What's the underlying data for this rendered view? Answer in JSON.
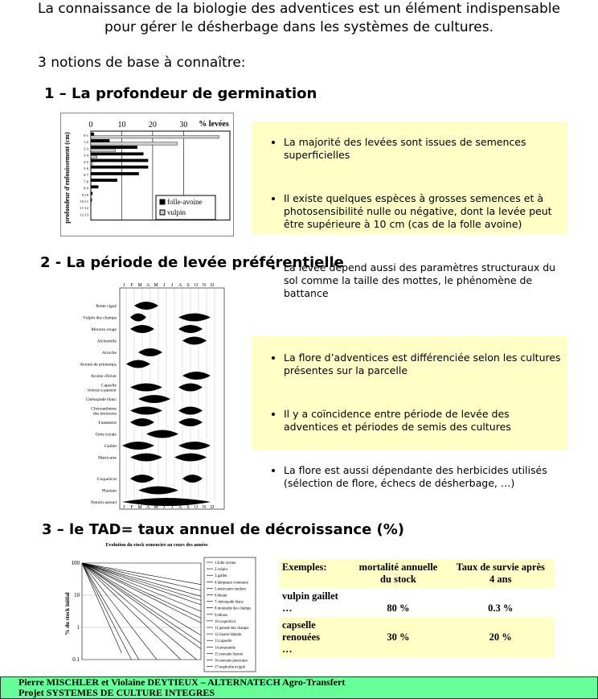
{
  "header": {
    "title": "La connaissance de la biologie des adventices est un élément indispensable\npour gérer le désherbage dans les systèmes de cultures.",
    "intro": "3 notions de base à connaître:"
  },
  "sections": [
    {
      "heading": "1 – La profondeur de germination",
      "bullets": [
        "La majorité des levées sont issues de semences superficielles",
        "Il existe quelques espèces à grosses semences et à photosensibilité nulle ou négative, dont la levée peut être supérieure à 10 cm (cas de la folle avoine)",
        "La levée dépend aussi des paramètres structuraux du sol comme la taille des mottes, le phénomène de battance"
      ],
      "figure": {
        "type": "bar",
        "x_title": "% levées",
        "y_title": "profondeur d'enfouissement (cm)",
        "categories": [
          "0-1",
          "1-2",
          "2-3",
          "3-4",
          "4-5",
          "5-6",
          "6-7",
          "7-8",
          "8-9",
          "9-10",
          "10-11",
          "11-12",
          "12-13"
        ],
        "series": [
          {
            "name": "folle-avoine",
            "color": "#000000",
            "values": [
              1,
              6,
              15,
              17,
              18.5,
              18.5,
              15.5,
              8.5,
              2.4,
              0.5,
              0.3,
              0,
              0
            ]
          },
          {
            "name": "vulpin",
            "color": "#cccccc",
            "values": [
              41.5,
              28,
              8,
              2,
              0.5,
              0,
              0,
              0,
              0,
              0,
              0,
              0,
              0
            ]
          }
        ],
        "xlim": [
          0,
          45
        ],
        "xticks": [
          0,
          10,
          20,
          30
        ]
      }
    },
    {
      "heading": "2 - La période de levée préférentielle",
      "bullets": [
        "La flore d’adventices est différenciée selon les cultures présentes sur la parcelle",
        "Il y a coïncidence entre période de levée des adventices et périodes de semis des cultures",
        "La flore est aussi dépendante des herbicides utilisés (sélection de flore, échecs de désherbage, …)"
      ],
      "figure": {
        "months": [
          "J",
          "F",
          "M",
          "A",
          "M",
          "J",
          "J",
          "A",
          "S",
          "O",
          "N",
          "D"
        ],
        "species": [
          {
            "name": "Petite ciguë",
            "periods": [
              [
                2.5,
                5.5
              ]
            ]
          },
          {
            "name": "Vulpin des champs",
            "periods": [
              [
                2,
                4
              ],
              [
                8,
                12
              ]
            ]
          },
          {
            "name": "Mouron rouge",
            "periods": [
              [
                2,
                5
              ],
              [
                8,
                11
              ]
            ]
          },
          {
            "name": "Alchemille",
            "periods": [
              [
                8.5,
                11.5
              ]
            ]
          },
          {
            "name": "Arroche",
            "periods": [
              [
                3,
                6
              ]
            ]
          },
          {
            "name": "Avoine de printemps",
            "periods": [
              [
                1.5,
                4.5
              ]
            ]
          },
          {
            "name": "Avoine d'hiver",
            "periods": [
              [
                8.5,
                12
              ]
            ]
          },
          {
            "name": "Capselle\nbourse à pasteur",
            "periods": [
              [
                2,
                6
              ],
              [
                8,
                11
              ]
            ]
          },
          {
            "name": "Chénopode blanc",
            "periods": [
              [
                3,
                7
              ]
            ]
          },
          {
            "name": "Chrysanthème\ndes moissons",
            "periods": [
              [
                2,
                6
              ],
              [
                8,
                11
              ]
            ]
          },
          {
            "name": "Fumeterre",
            "periods": [
              [
                2,
                5
              ],
              [
                8,
                11
              ]
            ]
          },
          {
            "name": "Ortie royale",
            "periods": [
              [
                4,
                8
              ]
            ]
          },
          {
            "name": "Gaillet",
            "periods": [
              [
                1,
                5
              ],
              [
                8,
                12
              ]
            ]
          },
          {
            "name": "Matricaire",
            "periods": [
              [
                2,
                6
              ],
              [
                7.5,
                11.5
              ]
            ]
          },
          {
            "name": "Coquelicot",
            "periods": [
              [
                2,
                5
              ],
              [
                8.5,
                11
              ]
            ]
          },
          {
            "name": "Plantain",
            "periods": [
              [
                3,
                8
              ]
            ]
          },
          {
            "name": "Paturin annuel",
            "periods": [
              [
                1,
                12
              ]
            ]
          }
        ]
      }
    },
    {
      "heading": "3 – le TAD= taux annuel de décroissance (%)",
      "figure": {
        "type": "line",
        "title": "Evolution du stock semencier au cours des années",
        "y_title": "% du stock initial",
        "log_y": true,
        "ylim": [
          0.1,
          100
        ],
        "yticks": [
          100,
          10,
          1,
          0.1
        ],
        "xlim": [
          0,
          12
        ],
        "series": [
          {
            "name": "1.folle avoine",
            "annual_survival": 0.2
          },
          {
            "name": "2.vulpin",
            "annual_survival": 0.25
          },
          {
            "name": "3.gaillet",
            "annual_survival": 0.3
          },
          {
            "name": "4.lampsane commune",
            "annual_survival": 0.4
          },
          {
            "name": "5.matricaire inodore",
            "annual_survival": 0.5
          },
          {
            "name": "6.bleuet",
            "annual_survival": 0.55
          },
          {
            "name": "7.chénopode blanc",
            "annual_survival": 0.6
          },
          {
            "name": "8.moutarde des champs",
            "annual_survival": 0.62
          },
          {
            "name": "9.éthuse",
            "annual_survival": 0.65
          },
          {
            "name": "10.coquelicot",
            "annual_survival": 0.7
          },
          {
            "name": "11.pensée des champs",
            "annual_survival": 0.72
          },
          {
            "name": "12.linaire bâtarde",
            "annual_survival": 0.75
          },
          {
            "name": "13.capselle",
            "annual_survival": 0.78
          },
          {
            "name": "14.amaranthe",
            "annual_survival": 0.8
          },
          {
            "name": "15.renouée liseron",
            "annual_survival": 0.82
          },
          {
            "name": "16.renouée persicaire",
            "annual_survival": 0.85
          },
          {
            "name": "17.euphorbe exiguë",
            "annual_survival": 0.88
          }
        ]
      },
      "table": {
        "header": [
          "Exemples:",
          "mortalité annuelle\ndu stock",
          "Taux de survie après\n4 ans"
        ],
        "rows": [
          [
            "vulpin gaillet\n…",
            "80 %",
            "0.3 %"
          ],
          [
            "capselle\nrenouées\n…",
            "30 %",
            "20 %"
          ]
        ]
      }
    }
  ],
  "footer": [
    "Pierre MISCHLER et Violaine DEYTIEUX – ALTERNATECH Agro-Transfert",
    "Projet SYSTEMES DE CULTURE INTEGRES"
  ]
}
